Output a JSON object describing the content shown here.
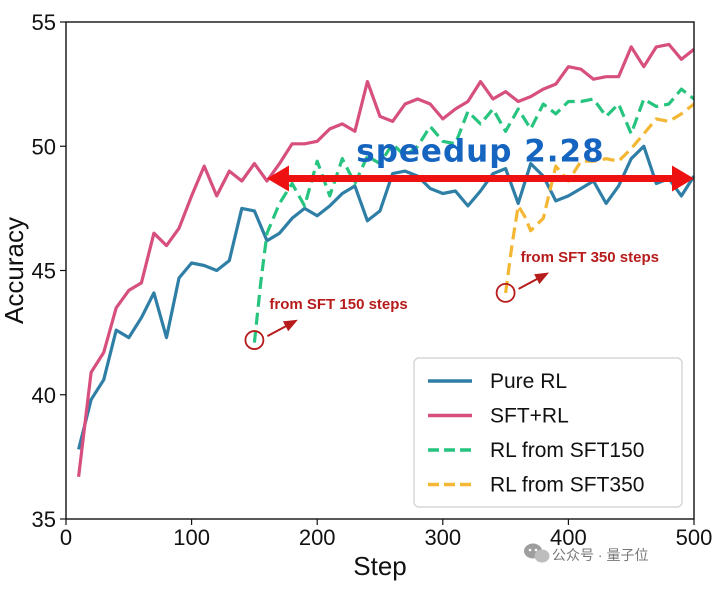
{
  "chart_data": {
    "type": "line",
    "xlabel": "Step",
    "ylabel": "Accuracy",
    "xlim": [
      0,
      500
    ],
    "ylim": [
      35,
      55
    ],
    "xticks": [
      0,
      100,
      200,
      300,
      400,
      500
    ],
    "yticks": [
      35,
      40,
      45,
      50,
      55
    ],
    "grid": false,
    "legend_position": "bottom-right",
    "series": [
      {
        "name": "Pure RL",
        "color": "#2e7ea6",
        "dash": "solid",
        "x": [
          10,
          20,
          30,
          40,
          50,
          60,
          70,
          80,
          90,
          100,
          110,
          120,
          130,
          140,
          150,
          160,
          170,
          180,
          190,
          200,
          210,
          220,
          230,
          240,
          250,
          260,
          270,
          280,
          290,
          300,
          310,
          320,
          330,
          340,
          350,
          360,
          370,
          380,
          390,
          400,
          410,
          420,
          430,
          440,
          450,
          460,
          470,
          480,
          490,
          500
        ],
        "y": [
          37.8,
          39.8,
          40.6,
          42.6,
          42.3,
          43.1,
          44.1,
          42.3,
          44.7,
          45.3,
          45.2,
          45.0,
          45.4,
          47.5,
          47.4,
          46.2,
          46.5,
          47.1,
          47.5,
          47.2,
          47.6,
          48.1,
          48.4,
          47.0,
          47.4,
          48.9,
          49.0,
          48.8,
          48.3,
          48.1,
          48.2,
          47.6,
          48.2,
          48.9,
          49.1,
          47.7,
          49.3,
          48.8,
          47.8,
          48.0,
          48.3,
          48.6,
          47.7,
          48.4,
          49.5,
          50.0,
          48.5,
          48.7,
          48.0,
          48.8
        ]
      },
      {
        "name": "SFT+RL",
        "color": "#d64f7f",
        "dash": "solid",
        "x": [
          10,
          20,
          30,
          40,
          50,
          60,
          70,
          80,
          90,
          100,
          110,
          120,
          130,
          140,
          150,
          160,
          170,
          180,
          190,
          200,
          210,
          220,
          230,
          240,
          250,
          260,
          270,
          280,
          290,
          300,
          310,
          320,
          330,
          340,
          350,
          360,
          370,
          380,
          390,
          400,
          410,
          420,
          430,
          440,
          450,
          460,
          470,
          480,
          490,
          500
        ],
        "y": [
          36.7,
          40.9,
          41.7,
          43.5,
          44.2,
          44.5,
          46.5,
          46.0,
          46.7,
          48.0,
          49.2,
          48.0,
          49.0,
          48.6,
          49.3,
          48.6,
          49.3,
          50.1,
          50.1,
          50.2,
          50.7,
          50.9,
          50.6,
          52.6,
          51.2,
          51.0,
          51.7,
          51.9,
          51.7,
          51.1,
          51.5,
          51.8,
          52.6,
          51.9,
          52.2,
          51.8,
          52.0,
          52.3,
          52.5,
          53.2,
          53.1,
          52.7,
          52.8,
          52.8,
          54.0,
          53.2,
          54.0,
          54.1,
          53.5,
          53.9
        ]
      },
      {
        "name": "RL from SFT150",
        "color": "#27c47f",
        "dash": "dashed",
        "x": [
          150,
          155,
          160,
          170,
          180,
          190,
          200,
          210,
          220,
          230,
          240,
          250,
          260,
          270,
          280,
          290,
          300,
          310,
          320,
          330,
          340,
          350,
          360,
          370,
          380,
          390,
          400,
          410,
          420,
          430,
          440,
          450,
          460,
          470,
          480,
          490,
          500
        ],
        "y": [
          42.1,
          44.5,
          46.5,
          47.7,
          48.5,
          47.6,
          49.4,
          48.0,
          49.5,
          48.5,
          49.6,
          49.3,
          50.1,
          49.6,
          50.0,
          50.8,
          50.2,
          50.1,
          51.4,
          50.9,
          51.5,
          50.6,
          51.5,
          50.7,
          51.7,
          51.3,
          51.8,
          51.8,
          51.9,
          51.2,
          51.7,
          50.5,
          51.9,
          51.6,
          51.7,
          52.3,
          51.9
        ]
      },
      {
        "name": "RL from SFT350",
        "color": "#f4b733",
        "dash": "dashed",
        "x": [
          350,
          355,
          360,
          365,
          370,
          380,
          390,
          400,
          410,
          420,
          430,
          440,
          450,
          460,
          470,
          480,
          490,
          500
        ],
        "y": [
          44.1,
          46.0,
          47.6,
          47.2,
          46.6,
          47.1,
          49.2,
          48.6,
          49.4,
          49.4,
          49.5,
          49.4,
          49.9,
          50.5,
          51.1,
          51.0,
          51.3,
          51.7
        ]
      }
    ],
    "annotations": [
      {
        "text": "from SFT 150 steps",
        "point": [
          150,
          42.2
        ],
        "color": "#b71c1c"
      },
      {
        "text": "from SFT 350 steps",
        "point": [
          350,
          44.1
        ],
        "color": "#b71c1c"
      },
      {
        "text": "speedup 2.28",
        "arrow_from": [
          160,
          48.7
        ],
        "arrow_to": [
          500,
          48.7
        ],
        "color": "#1565c0",
        "arrow_color": "#ee1111"
      }
    ]
  },
  "watermark": {
    "text": "公众号 · 量子位"
  }
}
